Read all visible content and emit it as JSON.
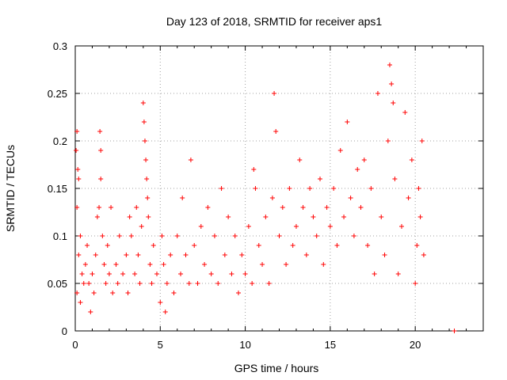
{
  "chart_data": {
    "type": "scatter",
    "title": "Day 123 of 2018, SRMTID for receiver aps1",
    "xlabel": "GPS time / hours",
    "ylabel": "SRMTID / TECUs",
    "xlim": [
      0,
      24
    ],
    "ylim": [
      0,
      0.3
    ],
    "x_ticks": [
      0,
      5,
      10,
      15,
      20
    ],
    "x_tick_labels": [
      "0",
      "5",
      "10",
      "15",
      "20"
    ],
    "y_ticks": [
      0,
      0.05,
      0.1,
      0.15,
      0.2,
      0.25,
      0.3
    ],
    "y_tick_labels": [
      "0",
      "0.05",
      "0.1",
      "0.15",
      "0.2",
      "0.25",
      "0.3"
    ],
    "grid": true,
    "marker": "+",
    "color": "#ff0000",
    "series": [
      {
        "name": "SRMTID",
        "points": [
          [
            0.05,
            0.19
          ],
          [
            0.1,
            0.21
          ],
          [
            0.15,
            0.17
          ],
          [
            0.2,
            0.16
          ],
          [
            0.1,
            0.13
          ],
          [
            0.3,
            0.1
          ],
          [
            0.2,
            0.08
          ],
          [
            0.4,
            0.06
          ],
          [
            0.1,
            0.04
          ],
          [
            0.3,
            0.03
          ],
          [
            0.5,
            0.05
          ],
          [
            0.6,
            0.07
          ],
          [
            0.7,
            0.09
          ],
          [
            0.8,
            0.05
          ],
          [
            0.9,
            0.02
          ],
          [
            1.0,
            0.06
          ],
          [
            1.1,
            0.04
          ],
          [
            1.2,
            0.08
          ],
          [
            1.3,
            0.12
          ],
          [
            1.4,
            0.13
          ],
          [
            1.45,
            0.21
          ],
          [
            1.5,
            0.19
          ],
          [
            1.5,
            0.16
          ],
          [
            1.6,
            0.1
          ],
          [
            1.7,
            0.07
          ],
          [
            1.8,
            0.05
          ],
          [
            1.9,
            0.09
          ],
          [
            2.0,
            0.06
          ],
          [
            2.1,
            0.13
          ],
          [
            2.2,
            0.04
          ],
          [
            2.4,
            0.07
          ],
          [
            2.5,
            0.05
          ],
          [
            2.6,
            0.1
          ],
          [
            2.8,
            0.06
          ],
          [
            3.0,
            0.08
          ],
          [
            3.1,
            0.04
          ],
          [
            3.2,
            0.12
          ],
          [
            3.3,
            0.1
          ],
          [
            3.5,
            0.06
          ],
          [
            3.6,
            0.13
          ],
          [
            3.7,
            0.08
          ],
          [
            3.8,
            0.05
          ],
          [
            3.9,
            0.11
          ],
          [
            4.0,
            0.24
          ],
          [
            4.05,
            0.22
          ],
          [
            4.1,
            0.2
          ],
          [
            4.15,
            0.18
          ],
          [
            4.2,
            0.16
          ],
          [
            4.25,
            0.14
          ],
          [
            4.3,
            0.12
          ],
          [
            4.4,
            0.07
          ],
          [
            4.5,
            0.05
          ],
          [
            4.6,
            0.09
          ],
          [
            4.8,
            0.06
          ],
          [
            5.0,
            0.03
          ],
          [
            5.1,
            0.1
          ],
          [
            5.2,
            0.07
          ],
          [
            5.3,
            0.02
          ],
          [
            5.4,
            0.05
          ],
          [
            5.6,
            0.08
          ],
          [
            5.8,
            0.04
          ],
          [
            6.0,
            0.1
          ],
          [
            6.2,
            0.06
          ],
          [
            6.3,
            0.14
          ],
          [
            6.5,
            0.08
          ],
          [
            6.7,
            0.05
          ],
          [
            6.8,
            0.18
          ],
          [
            7.0,
            0.09
          ],
          [
            7.2,
            0.05
          ],
          [
            7.4,
            0.11
          ],
          [
            7.6,
            0.07
          ],
          [
            7.8,
            0.13
          ],
          [
            8.0,
            0.06
          ],
          [
            8.2,
            0.1
          ],
          [
            8.4,
            0.05
          ],
          [
            8.6,
            0.15
          ],
          [
            8.8,
            0.08
          ],
          [
            9.0,
            0.12
          ],
          [
            9.2,
            0.06
          ],
          [
            9.4,
            0.1
          ],
          [
            9.6,
            0.04
          ],
          [
            9.8,
            0.08
          ],
          [
            10.0,
            0.06
          ],
          [
            10.2,
            0.11
          ],
          [
            10.4,
            0.05
          ],
          [
            10.5,
            0.17
          ],
          [
            10.6,
            0.15
          ],
          [
            10.8,
            0.09
          ],
          [
            11.0,
            0.07
          ],
          [
            11.2,
            0.12
          ],
          [
            11.4,
            0.05
          ],
          [
            11.6,
            0.14
          ],
          [
            11.7,
            0.25
          ],
          [
            11.8,
            0.21
          ],
          [
            12.0,
            0.1
          ],
          [
            12.2,
            0.13
          ],
          [
            12.4,
            0.07
          ],
          [
            12.6,
            0.15
          ],
          [
            12.8,
            0.09
          ],
          [
            13.0,
            0.11
          ],
          [
            13.2,
            0.18
          ],
          [
            13.4,
            0.13
          ],
          [
            13.6,
            0.08
          ],
          [
            13.8,
            0.15
          ],
          [
            14.0,
            0.12
          ],
          [
            14.2,
            0.1
          ],
          [
            14.4,
            0.16
          ],
          [
            14.6,
            0.07
          ],
          [
            14.8,
            0.13
          ],
          [
            15.0,
            0.11
          ],
          [
            15.2,
            0.15
          ],
          [
            15.4,
            0.09
          ],
          [
            15.6,
            0.19
          ],
          [
            15.8,
            0.12
          ],
          [
            16.0,
            0.22
          ],
          [
            16.2,
            0.14
          ],
          [
            16.4,
            0.1
          ],
          [
            16.6,
            0.17
          ],
          [
            16.8,
            0.13
          ],
          [
            17.0,
            0.18
          ],
          [
            17.2,
            0.09
          ],
          [
            17.4,
            0.15
          ],
          [
            17.6,
            0.06
          ],
          [
            17.8,
            0.25
          ],
          [
            18.0,
            0.12
          ],
          [
            18.2,
            0.08
          ],
          [
            18.4,
            0.2
          ],
          [
            18.5,
            0.28
          ],
          [
            18.6,
            0.26
          ],
          [
            18.7,
            0.24
          ],
          [
            18.8,
            0.16
          ],
          [
            19.0,
            0.06
          ],
          [
            19.2,
            0.11
          ],
          [
            19.4,
            0.23
          ],
          [
            19.6,
            0.14
          ],
          [
            19.8,
            0.18
          ],
          [
            20.0,
            0.05
          ],
          [
            20.1,
            0.09
          ],
          [
            20.2,
            0.15
          ],
          [
            20.3,
            0.12
          ],
          [
            20.4,
            0.2
          ],
          [
            20.5,
            0.08
          ],
          [
            22.3,
            0.0
          ]
        ]
      }
    ]
  }
}
